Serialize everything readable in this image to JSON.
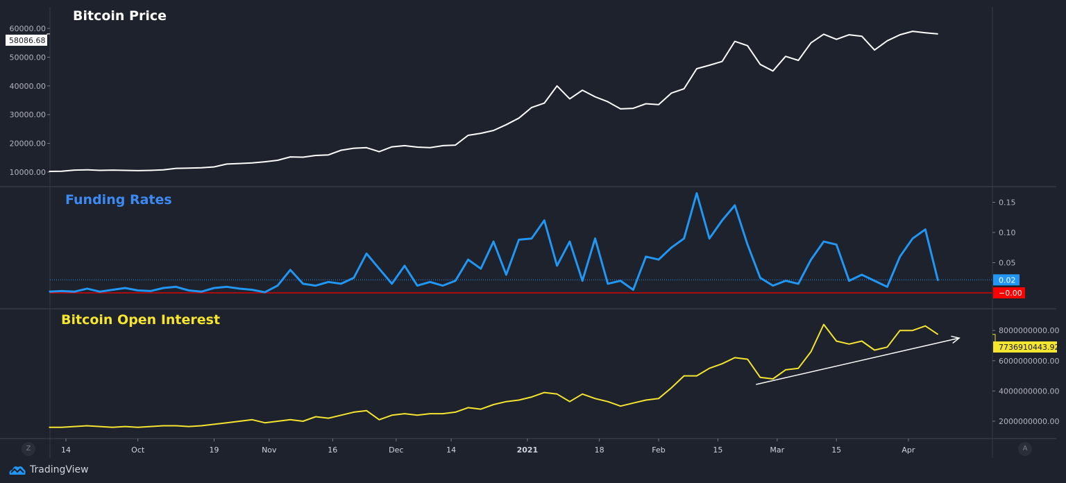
{
  "branding": {
    "logo_text": "TradingView"
  },
  "controls": {
    "zoom_button": "Z",
    "auto_scale_button": "A"
  },
  "colors": {
    "background": "#1e222d",
    "price": "#ffffff",
    "funding": "#2196f3",
    "open_interest": "#f5e530",
    "zero_line": "#ff0000",
    "separator": "#434651"
  },
  "x_axis": {
    "ticks": [
      {
        "date": "2020-09-14",
        "label": "14"
      },
      {
        "date": "2020-10-01",
        "label": "Oct"
      },
      {
        "date": "2020-10-19",
        "label": "19"
      },
      {
        "date": "2020-11-01",
        "label": "Nov"
      },
      {
        "date": "2020-11-16",
        "label": "16"
      },
      {
        "date": "2020-12-01",
        "label": "Dec"
      },
      {
        "date": "2020-12-14",
        "label": "14"
      },
      {
        "date": "2021-01-01",
        "label": "2021"
      },
      {
        "date": "2021-01-18",
        "label": "18"
      },
      {
        "date": "2021-02-01",
        "label": "Feb"
      },
      {
        "date": "2021-02-15",
        "label": "15"
      },
      {
        "date": "2021-03-01",
        "label": "Mar"
      },
      {
        "date": "2021-03-15",
        "label": "15"
      },
      {
        "date": "2021-04-01",
        "label": "Apr"
      }
    ]
  },
  "chart_data": [
    {
      "type": "line",
      "title": "Bitcoin Price",
      "axis_side": "left",
      "ylim": [
        10000,
        60000
      ],
      "yticks": [
        "10000.00",
        "20000.00",
        "30000.00",
        "40000.00",
        "50000.00",
        "60000.00"
      ],
      "last_value_label": "58086.68",
      "x": [
        "2020-09-10",
        "2020-09-13",
        "2020-09-16",
        "2020-09-19",
        "2020-09-22",
        "2020-09-25",
        "2020-09-28",
        "2020-10-01",
        "2020-10-04",
        "2020-10-07",
        "2020-10-10",
        "2020-10-13",
        "2020-10-16",
        "2020-10-19",
        "2020-10-22",
        "2020-10-25",
        "2020-10-28",
        "2020-10-31",
        "2020-11-03",
        "2020-11-06",
        "2020-11-09",
        "2020-11-12",
        "2020-11-15",
        "2020-11-18",
        "2020-11-21",
        "2020-11-24",
        "2020-11-27",
        "2020-11-30",
        "2020-12-03",
        "2020-12-06",
        "2020-12-09",
        "2020-12-12",
        "2020-12-15",
        "2020-12-18",
        "2020-12-21",
        "2020-12-24",
        "2020-12-27",
        "2020-12-30",
        "2021-01-02",
        "2021-01-05",
        "2021-01-08",
        "2021-01-11",
        "2021-01-14",
        "2021-01-17",
        "2021-01-20",
        "2021-01-23",
        "2021-01-26",
        "2021-01-29",
        "2021-02-01",
        "2021-02-04",
        "2021-02-07",
        "2021-02-10",
        "2021-02-13",
        "2021-02-16",
        "2021-02-19",
        "2021-02-22",
        "2021-02-25",
        "2021-02-28",
        "2021-03-03",
        "2021-03-06",
        "2021-03-09",
        "2021-03-12",
        "2021-03-15",
        "2021-03-18",
        "2021-03-21",
        "2021-03-24",
        "2021-03-27",
        "2021-03-30",
        "2021-04-02",
        "2021-04-05",
        "2021-04-08"
      ],
      "values": [
        10250,
        10300,
        10700,
        10800,
        10600,
        10700,
        10600,
        10500,
        10600,
        10800,
        11300,
        11400,
        11500,
        11800,
        12800,
        13000,
        13200,
        13600,
        14100,
        15300,
        15200,
        15800,
        16000,
        17600,
        18300,
        18500,
        17100,
        18800,
        19200,
        18700,
        18500,
        19200,
        19400,
        22800,
        23500,
        24500,
        26500,
        28800,
        32500,
        34000,
        40000,
        35500,
        38500,
        36200,
        34500,
        32000,
        32200,
        33800,
        33500,
        37500,
        39000,
        46000,
        47200,
        48500,
        55500,
        54000,
        47500,
        45200,
        50300,
        48900,
        55000,
        58000,
        56200,
        57800,
        57300,
        52500,
        55700,
        57800,
        59000,
        58500,
        58086.68
      ]
    },
    {
      "type": "line",
      "title": "Funding Rates",
      "axis_side": "right",
      "ylim": [
        -0.01,
        0.17
      ],
      "yticks": [
        "0.05",
        "0.10",
        "0.15"
      ],
      "last_value_label": "0.02",
      "zero_line_label": "−0.00",
      "values": [
        0.002,
        0.003,
        0.002,
        0.007,
        0.002,
        0.005,
        0.008,
        0.004,
        0.003,
        0.008,
        0.01,
        0.004,
        0.002,
        0.008,
        0.01,
        0.007,
        0.005,
        0.001,
        0.012,
        0.038,
        0.015,
        0.012,
        0.018,
        0.015,
        0.025,
        0.065,
        0.04,
        0.015,
        0.045,
        0.012,
        0.018,
        0.012,
        0.02,
        0.055,
        0.04,
        0.085,
        0.03,
        0.088,
        0.09,
        0.12,
        0.045,
        0.085,
        0.02,
        0.09,
        0.015,
        0.02,
        0.005,
        0.06,
        0.055,
        0.075,
        0.09,
        0.165,
        0.09,
        0.12,
        0.145,
        0.08,
        0.025,
        0.012,
        0.02,
        0.015,
        0.055,
        0.085,
        0.08,
        0.02,
        0.03,
        0.02,
        0.01,
        0.06,
        0.09,
        0.105,
        0.02
      ]
    },
    {
      "type": "line",
      "title": "Bitcoin Open Interest",
      "axis_side": "right",
      "ylim": [
        1200000000,
        9000000000
      ],
      "yticks": [
        "2000000000.00",
        "4000000000.00",
        "6000000000.00",
        "8000000000.00"
      ],
      "last_value_label": "7736910443.92",
      "values": [
        1600000000.0,
        1600000000.0,
        1650000000.0,
        1700000000.0,
        1650000000.0,
        1600000000.0,
        1650000000.0,
        1600000000.0,
        1650000000.0,
        1700000000.0,
        1700000000.0,
        1650000000.0,
        1700000000.0,
        1800000000.0,
        1900000000.0,
        2000000000.0,
        2100000000.0,
        1900000000.0,
        2000000000.0,
        2100000000.0,
        2000000000.0,
        2300000000.0,
        2200000000.0,
        2400000000.0,
        2600000000.0,
        2700000000.0,
        2100000000.0,
        2400000000.0,
        2500000000.0,
        2400000000.0,
        2500000000.0,
        2500000000.0,
        2600000000.0,
        2900000000.0,
        2800000000.0,
        3100000000.0,
        3300000000.0,
        3400000000.0,
        3600000000.0,
        3900000000.0,
        3800000000.0,
        3300000000.0,
        3800000000.0,
        3500000000.0,
        3300000000.0,
        3000000000.0,
        3200000000.0,
        3400000000.0,
        3500000000.0,
        4200000000.0,
        5000000000.0,
        5000000000.0,
        5500000000.0,
        5800000000.0,
        6200000000.0,
        6100000000.0,
        4900000000.0,
        4800000000.0,
        5400000000.0,
        5500000000.0,
        6600000000.0,
        8400000000.0,
        7300000000.0,
        7100000000.0,
        7300000000.0,
        6700000000.0,
        6900000000.0,
        8000000000.0,
        8000000000.0,
        8300000000.0,
        7736910443.92
      ],
      "trendline": {
        "start": [
          "2021-02-24",
          4430000000
        ],
        "end": [
          "2021-04-13",
          7500000000
        ],
        "color": "#ffffff",
        "arrow": true
      }
    }
  ]
}
